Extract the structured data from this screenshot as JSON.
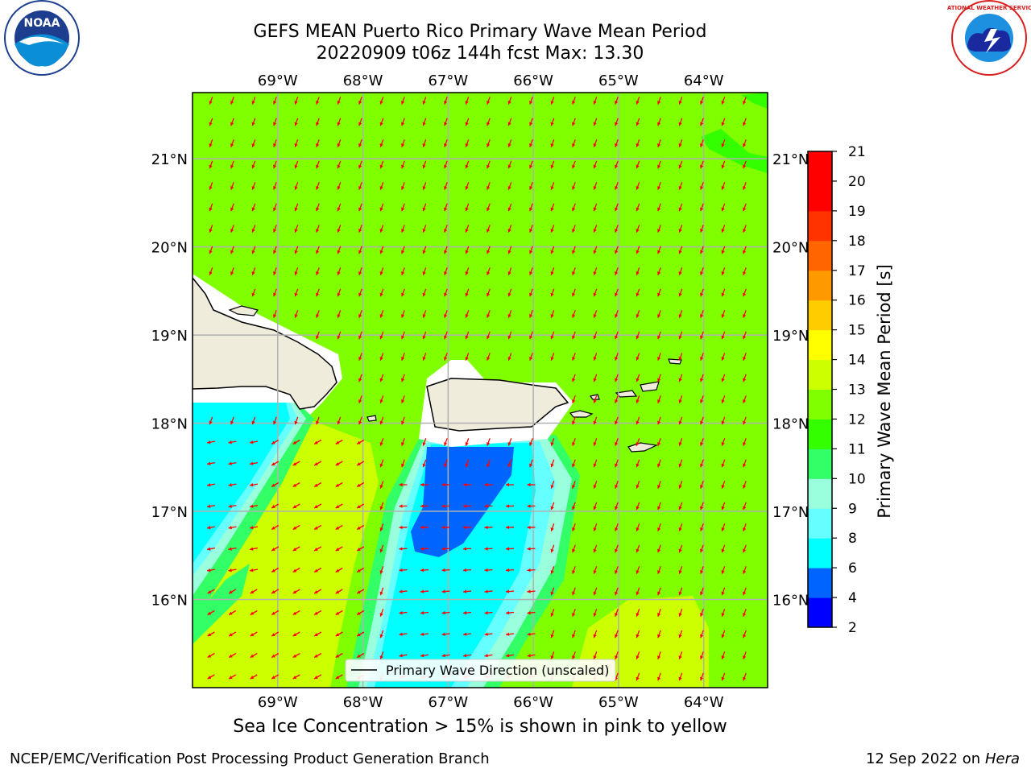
{
  "header": {
    "title": "GEFS MEAN Puerto Rico Primary Wave Mean Period",
    "subtitle": "20220909 t06z 144h fcst   Max: 13.30"
  },
  "logos": {
    "noaa": {
      "name": "noaa-logo",
      "text": "NOAA"
    },
    "nws": {
      "name": "nws-logo",
      "text": "NATIONAL WEATHER SERVICE"
    }
  },
  "map": {
    "lon_range": [
      -70.0,
      -63.25
    ],
    "lat_range": [
      15.0,
      21.75
    ],
    "lon_ticks": [
      {
        "value": -69,
        "label": "69°W"
      },
      {
        "value": -68,
        "label": "68°W"
      },
      {
        "value": -67,
        "label": "67°W"
      },
      {
        "value": -66,
        "label": "66°W"
      },
      {
        "value": -65,
        "label": "65°W"
      },
      {
        "value": -64,
        "label": "64°W"
      }
    ],
    "lat_ticks": [
      {
        "value": 21,
        "label": "21°N"
      },
      {
        "value": 20,
        "label": "20°N"
      },
      {
        "value": 19,
        "label": "19°N"
      },
      {
        "value": 18,
        "label": "18°N"
      },
      {
        "value": 17,
        "label": "17°N"
      },
      {
        "value": 16,
        "label": "16°N"
      }
    ],
    "legend_label": "Primary Wave Direction (unscaled)",
    "colors": {
      "land": "#efecdc",
      "arrows": "#ff0000",
      "grid": "#b0b0b0",
      "background": "#80ff00"
    }
  },
  "colorbar": {
    "label": "Primary Wave Mean Period [s]",
    "ticks": [
      "2",
      "4",
      "6",
      "8",
      "9",
      "10",
      "11",
      "12",
      "13",
      "14",
      "15",
      "16",
      "17",
      "18",
      "19",
      "20",
      "21"
    ],
    "colors": [
      "#0000ff",
      "#0064ff",
      "#00ffff",
      "#66ffff",
      "#99ffdd",
      "#33ff66",
      "#33ff00",
      "#80ff00",
      "#ccff00",
      "#ffff00",
      "#ffcc00",
      "#ff9900",
      "#ff6600",
      "#ff3300",
      "#ff0000"
    ]
  },
  "footer": {
    "sea_ice_note": "Sea Ice Concentration > 15% is shown in pink to yellow",
    "branch": "NCEP/EMC/Verification Post Processing Product Generation Branch",
    "date": "12 Sep 2022 on",
    "host": "Hera"
  }
}
